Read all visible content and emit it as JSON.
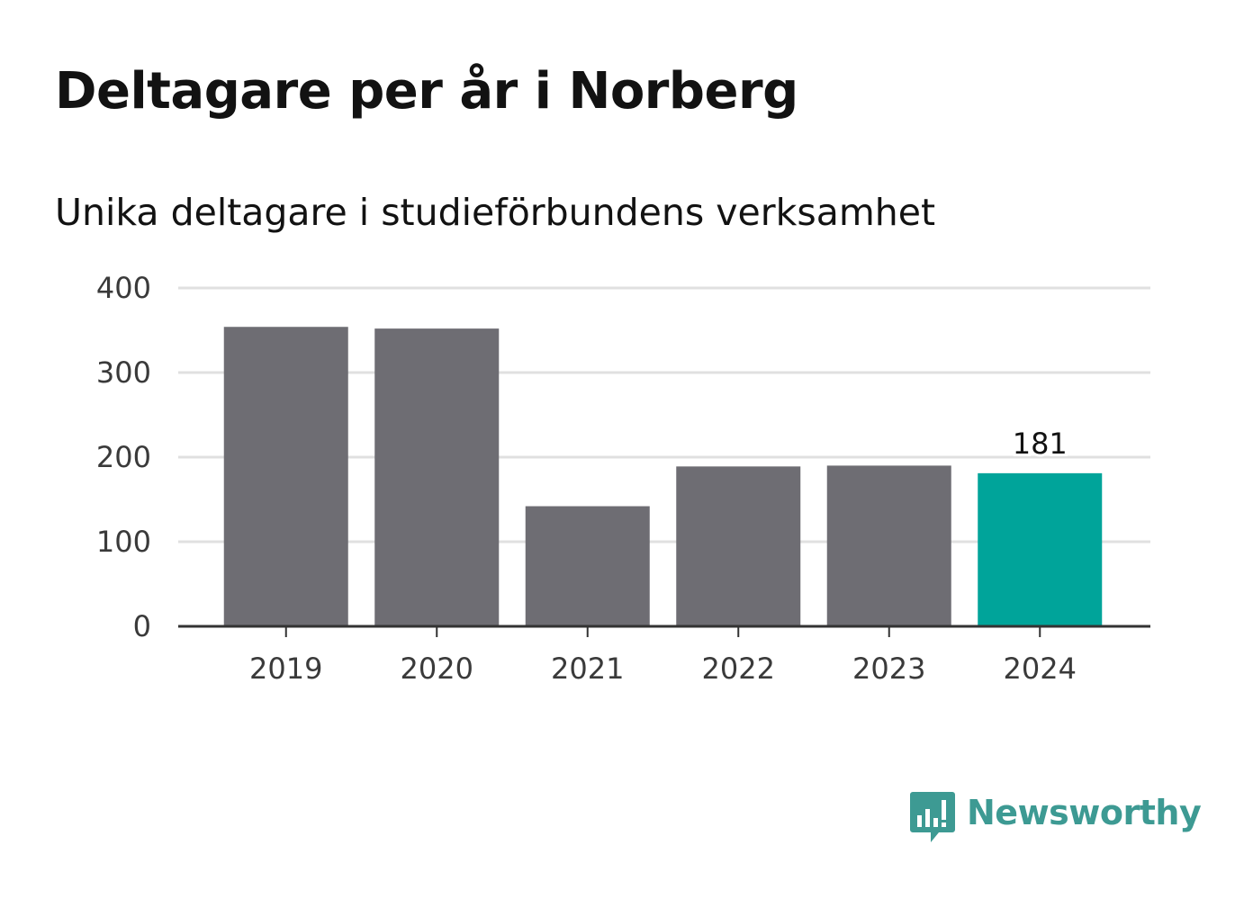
{
  "title": "Deltagare per år i Norberg",
  "subtitle": "Unika deltagare i studieförbundens verksamhet",
  "chart_data": {
    "type": "bar",
    "categories": [
      "2019",
      "2020",
      "2021",
      "2022",
      "2023",
      "2024"
    ],
    "values": [
      354,
      352,
      142,
      189,
      190,
      181
    ],
    "ylim": [
      0,
      400
    ],
    "yticks": [
      0,
      100,
      200,
      300,
      400
    ],
    "grid": true,
    "highlight_index": 5,
    "data_labels": [
      {
        "index": 5,
        "text": "181"
      }
    ],
    "colors": {
      "bar": "#6e6d73",
      "highlight": "#00a49a",
      "gridline": "#e0e0e0",
      "axis": "#333333"
    }
  },
  "logo": {
    "text": "Newsworthy",
    "icon": "newsworthy-chart-icon",
    "color": "#3d9a93"
  }
}
